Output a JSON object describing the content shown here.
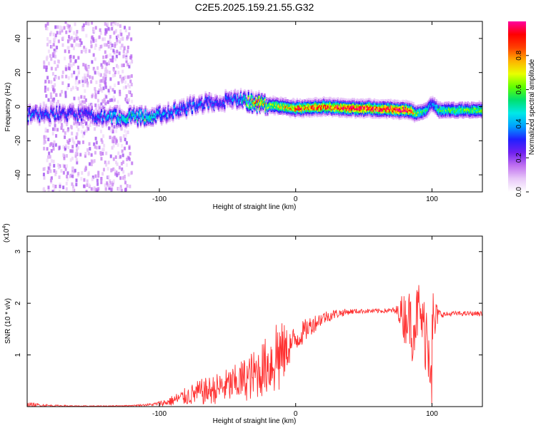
{
  "figure": {
    "title": "C2E5.2025.159.21.55.G32"
  },
  "chart_data": [
    {
      "type": "heatmap",
      "xlabel": "Height of straight line (km)",
      "ylabel": "Frequency (Hz)",
      "xlim": [
        -197,
        137
      ],
      "ylim": [
        -50,
        50
      ],
      "xticks": [
        -100,
        0,
        100
      ],
      "yticks": [
        -40,
        -20,
        0,
        20,
        40
      ],
      "colorbar": {
        "label": "Normalized spectral amplitude",
        "range": [
          0,
          1
        ],
        "ticks": [
          "0.0",
          "0.2",
          "0.4",
          "0.6",
          "0.8"
        ],
        "colors": [
          "#ffffff",
          "#e8c8f8",
          "#c070f0",
          "#7020f0",
          "#2020ff",
          "#00a0ff",
          "#00e8e8",
          "#00e070",
          "#60ff00",
          "#e8ff00",
          "#ffb000",
          "#ff4000",
          "#ff0000",
          "#ff00a0"
        ]
      },
      "ridge": {
        "x": [
          -197,
          -170,
          -150,
          -130,
          -110,
          -90,
          -70,
          -55,
          -40,
          -28,
          -20,
          -10,
          0,
          20,
          40,
          60,
          80,
          85,
          88,
          92,
          96,
          100,
          105,
          137
        ],
        "freq": [
          -5,
          -4,
          -5,
          -6,
          -6,
          -3,
          2,
          3,
          4,
          2,
          1,
          0,
          -1,
          0,
          -1,
          -1,
          -2,
          -2,
          -4,
          -3,
          -2,
          2,
          -2,
          -2
        ],
        "amplitude": [
          0.35,
          0.3,
          0.3,
          0.45,
          0.5,
          0.35,
          0.35,
          0.3,
          0.4,
          0.85,
          0.6,
          0.7,
          0.8,
          0.85,
          0.9,
          0.9,
          0.92,
          0.9,
          0.6,
          0.55,
          0.5,
          0.35,
          0.55,
          0.6
        ]
      },
      "scatter_region": {
        "x_range": [
          -185,
          -120
        ],
        "freq_range": [
          -50,
          50
        ],
        "amplitude_range": [
          0.0,
          0.15
        ]
      }
    },
    {
      "type": "line",
      "xlabel": "Height of straight line (km)",
      "ylabel": "SNR (10 * v/v)",
      "y_multiplier": "(x10",
      "y_multiplier_exp": "4",
      "y_multiplier_close": ")",
      "xlim": [
        -197,
        137
      ],
      "ylim": [
        0,
        3.3
      ],
      "xticks": [
        -100,
        0,
        100
      ],
      "yticks": [
        1,
        2,
        3
      ],
      "color": "#ff3030",
      "envelope": {
        "x": [
          -197,
          -190,
          -180,
          -160,
          -140,
          -120,
          -105,
          -95,
          -90,
          -85,
          -80,
          -75,
          -70,
          -65,
          -60,
          -55,
          -50,
          -45,
          -40,
          -35,
          -30,
          -25,
          -20,
          -16,
          -13,
          -10,
          -5,
          0,
          10,
          20,
          30,
          40,
          50,
          60,
          70,
          75,
          78,
          80,
          83,
          85,
          88,
          90,
          93,
          95,
          97,
          99,
          100,
          101,
          103,
          106,
          110,
          115,
          120,
          130,
          137
        ],
        "mean": [
          0.04,
          0.03,
          0.02,
          0.01,
          0.01,
          0.02,
          0.04,
          0.08,
          0.12,
          0.16,
          0.2,
          0.24,
          0.28,
          0.3,
          0.33,
          0.37,
          0.4,
          0.44,
          0.5,
          0.56,
          0.62,
          0.72,
          0.82,
          0.9,
          1.05,
          1.0,
          1.15,
          1.3,
          1.55,
          1.72,
          1.8,
          1.84,
          1.85,
          1.85,
          1.86,
          1.84,
          1.82,
          1.7,
          1.8,
          1.55,
          1.65,
          1.9,
          1.6,
          1.5,
          1.4,
          1.2,
          0.8,
          1.4,
          1.75,
          1.8,
          1.78,
          1.8,
          1.8,
          1.8,
          1.8
        ],
        "amp": [
          0.05,
          0.04,
          0.02,
          0.01,
          0.01,
          0.01,
          0.03,
          0.08,
          0.12,
          0.16,
          0.2,
          0.24,
          0.28,
          0.3,
          0.32,
          0.35,
          0.38,
          0.4,
          0.45,
          0.5,
          0.55,
          0.6,
          0.65,
          0.8,
          1.1,
          0.7,
          0.4,
          0.3,
          0.22,
          0.15,
          0.1,
          0.06,
          0.05,
          0.05,
          0.05,
          0.15,
          0.4,
          0.6,
          0.5,
          0.8,
          0.6,
          0.7,
          0.5,
          0.9,
          1.0,
          1.2,
          1.6,
          1.2,
          0.3,
          0.08,
          0.06,
          0.05,
          0.05,
          0.05,
          0.05
        ]
      }
    }
  ]
}
